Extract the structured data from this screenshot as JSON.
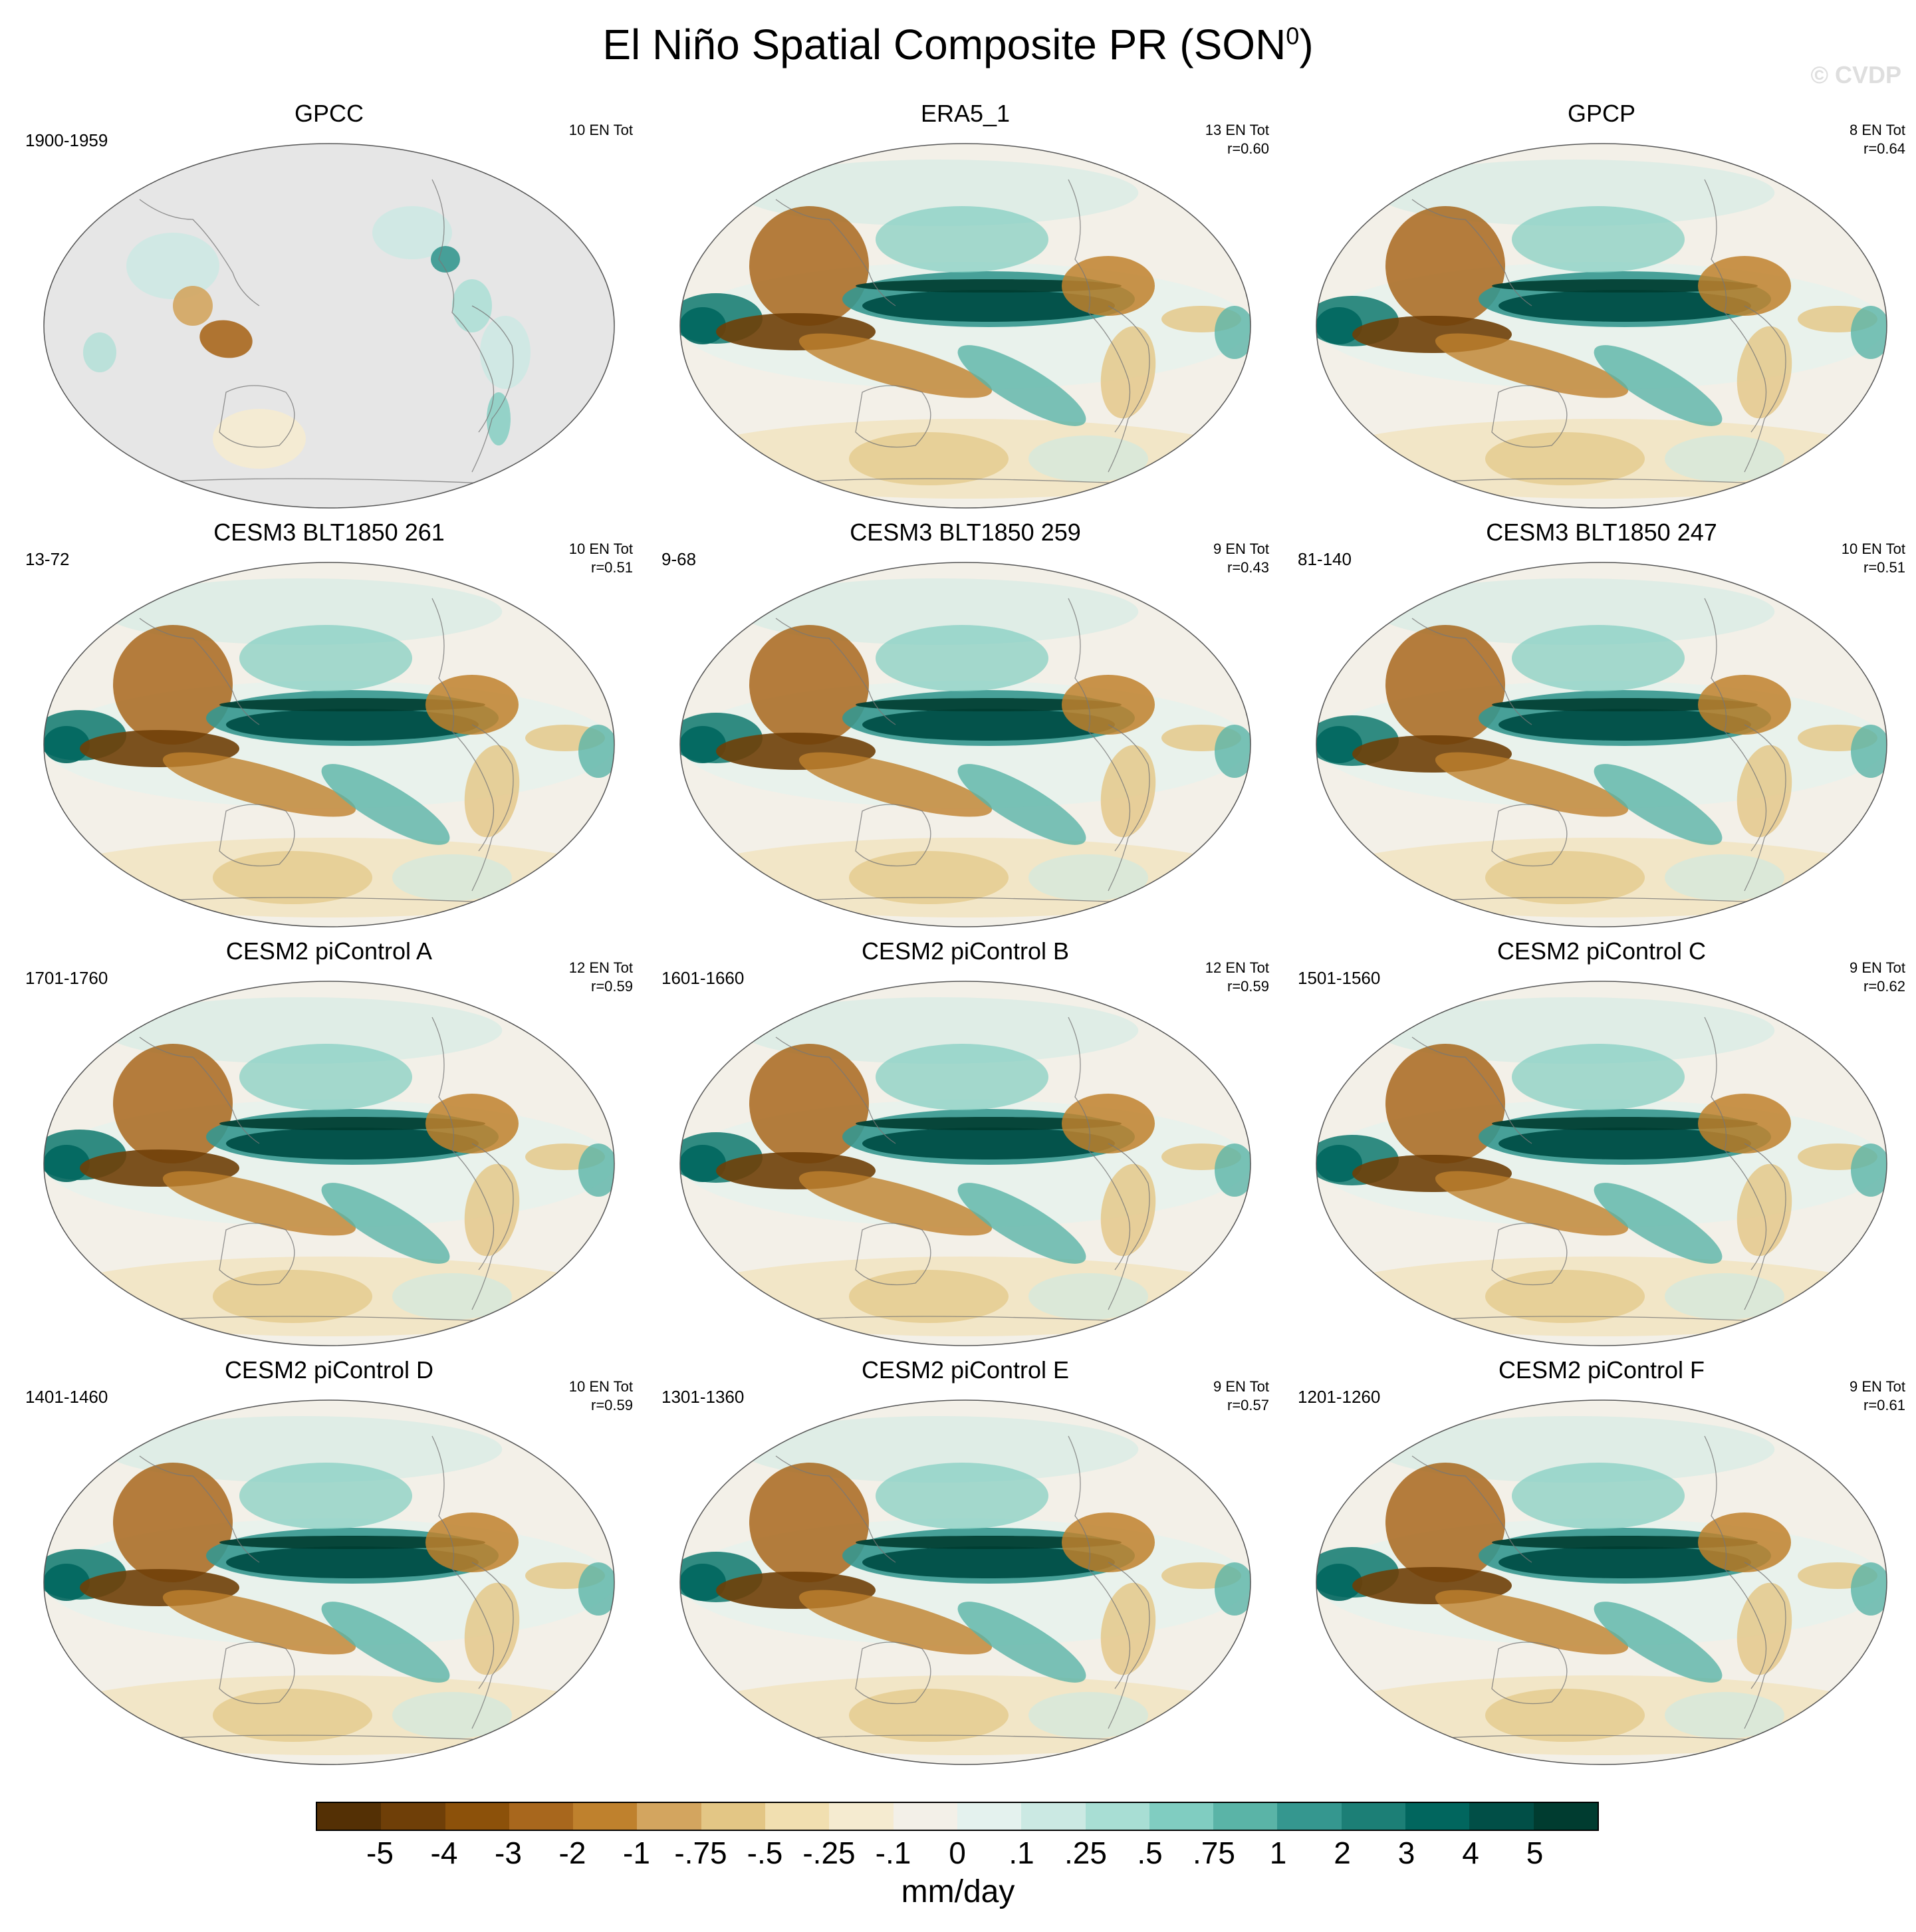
{
  "figure": {
    "title": "El Niño Spatial Composite PR (SON",
    "title_sup": "0",
    "title_end": ")",
    "watermark": "© CVDP"
  },
  "panels": [
    {
      "name": "GPCC",
      "years": "1900-1959",
      "stats_line1": "10 EN Tot",
      "stats_line2": ""
    },
    {
      "name": "ERA5_1",
      "years": "",
      "stats_line1": "13 EN Tot",
      "stats_line2": "r=0.60"
    },
    {
      "name": "GPCP",
      "years": "",
      "stats_line1": "8 EN Tot",
      "stats_line2": "r=0.64"
    },
    {
      "name": "CESM3 BLT1850 261",
      "years": "13-72",
      "stats_line1": "10 EN Tot",
      "stats_line2": "r=0.51"
    },
    {
      "name": "CESM3 BLT1850 259",
      "years": "9-68",
      "stats_line1": "9 EN Tot",
      "stats_line2": "r=0.43"
    },
    {
      "name": "CESM3 BLT1850 247",
      "years": "81-140",
      "stats_line1": "10 EN Tot",
      "stats_line2": "r=0.51"
    },
    {
      "name": "CESM2 piControl A",
      "years": "1701-1760",
      "stats_line1": "12 EN Tot",
      "stats_line2": "r=0.59"
    },
    {
      "name": "CESM2 piControl B",
      "years": "1601-1660",
      "stats_line1": "12 EN Tot",
      "stats_line2": "r=0.59"
    },
    {
      "name": "CESM2 piControl C",
      "years": "1501-1560",
      "stats_line1": "9 EN Tot",
      "stats_line2": "r=0.62"
    },
    {
      "name": "CESM2 piControl D",
      "years": "1401-1460",
      "stats_line1": "10 EN Tot",
      "stats_line2": "r=0.59"
    },
    {
      "name": "CESM2 piControl E",
      "years": "1301-1360",
      "stats_line1": "9 EN Tot",
      "stats_line2": "r=0.57"
    },
    {
      "name": "CESM2 piControl F",
      "years": "1201-1260",
      "stats_line1": "9 EN Tot",
      "stats_line2": "r=0.61"
    }
  ],
  "colorbar": {
    "units": "mm/day",
    "labels": [
      "-5",
      "-4",
      "-3",
      "-2",
      "-1",
      "-.75",
      "-.5",
      "-.25",
      "-.1",
      "0",
      ".1",
      ".25",
      ".5",
      ".75",
      "1",
      "2",
      "3",
      "4",
      "5"
    ],
    "colors": [
      "#543005",
      "#6f3f08",
      "#8c510a",
      "#a8671d",
      "#bf812d",
      "#d3a55f",
      "#e3c685",
      "#f1dfb0",
      "#f5ebd0",
      "#f3f0e8",
      "#e4f2ee",
      "#cbe9e3",
      "#a8ded4",
      "#80cdc1",
      "#5ab4a7",
      "#35978f",
      "#1c7f76",
      "#01665e",
      "#014f47",
      "#003c30"
    ],
    "missing_color": "#e6e6e6"
  }
}
